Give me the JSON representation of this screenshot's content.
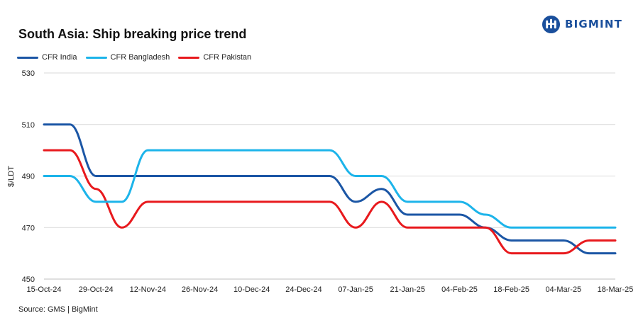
{
  "header": {
    "title": "South Asia: Ship breaking  price trend",
    "logo_text": "BIGMINT"
  },
  "footer": {
    "source": "Source: GMS | BigMint"
  },
  "colors": {
    "cfr_india": "#1b56a5",
    "cfr_bangladesh": "#1cb4ea",
    "cfr_pakistan": "#e8191d",
    "grid": "#d9d9d9",
    "logo": "#1a4f9c"
  },
  "chart_data": {
    "type": "line",
    "title": "South Asia: Ship breaking  price trend",
    "xlabel": "",
    "ylabel": "$/LDT",
    "ylim": [
      450,
      530
    ],
    "yticks": [
      450,
      470,
      490,
      510,
      530
    ],
    "grid": true,
    "legend_position": "top-left",
    "x": [
      "15-Oct-24",
      "22-Oct-24",
      "29-Oct-24",
      "05-Nov-24",
      "12-Nov-24",
      "19-Nov-24",
      "26-Nov-24",
      "03-Dec-24",
      "10-Dec-24",
      "17-Dec-24",
      "24-Dec-24",
      "31-Dec-24",
      "07-Jan-25",
      "14-Jan-25",
      "21-Jan-25",
      "28-Jan-25",
      "04-Feb-25",
      "11-Feb-25",
      "18-Feb-25",
      "25-Feb-25",
      "04-Mar-25",
      "11-Mar-25",
      "18-Mar-25"
    ],
    "xtick_labels": [
      "15-Oct-24",
      "29-Oct-24",
      "12-Nov-24",
      "26-Nov-24",
      "10-Dec-24",
      "24-Dec-24",
      "07-Jan-25",
      "21-Jan-25",
      "04-Feb-25",
      "18-Feb-25",
      "04-Mar-25",
      "18-Mar-25"
    ],
    "series": [
      {
        "name": "CFR India",
        "color": "#1b56a5",
        "values": [
          510,
          510,
          490,
          490,
          490,
          490,
          490,
          490,
          490,
          490,
          490,
          490,
          480,
          485,
          475,
          475,
          475,
          470,
          465,
          465,
          465,
          460,
          460
        ]
      },
      {
        "name": "CFR Bangladesh",
        "color": "#1cb4ea",
        "values": [
          490,
          490,
          480,
          480,
          500,
          500,
          500,
          500,
          500,
          500,
          500,
          500,
          490,
          490,
          480,
          480,
          480,
          475,
          470,
          470,
          470,
          470,
          470
        ]
      },
      {
        "name": "CFR Pakistan",
        "color": "#e8191d",
        "values": [
          500,
          500,
          485,
          470,
          480,
          480,
          480,
          480,
          480,
          480,
          480,
          480,
          470,
          480,
          470,
          470,
          470,
          470,
          460,
          460,
          460,
          465,
          465
        ]
      }
    ]
  }
}
